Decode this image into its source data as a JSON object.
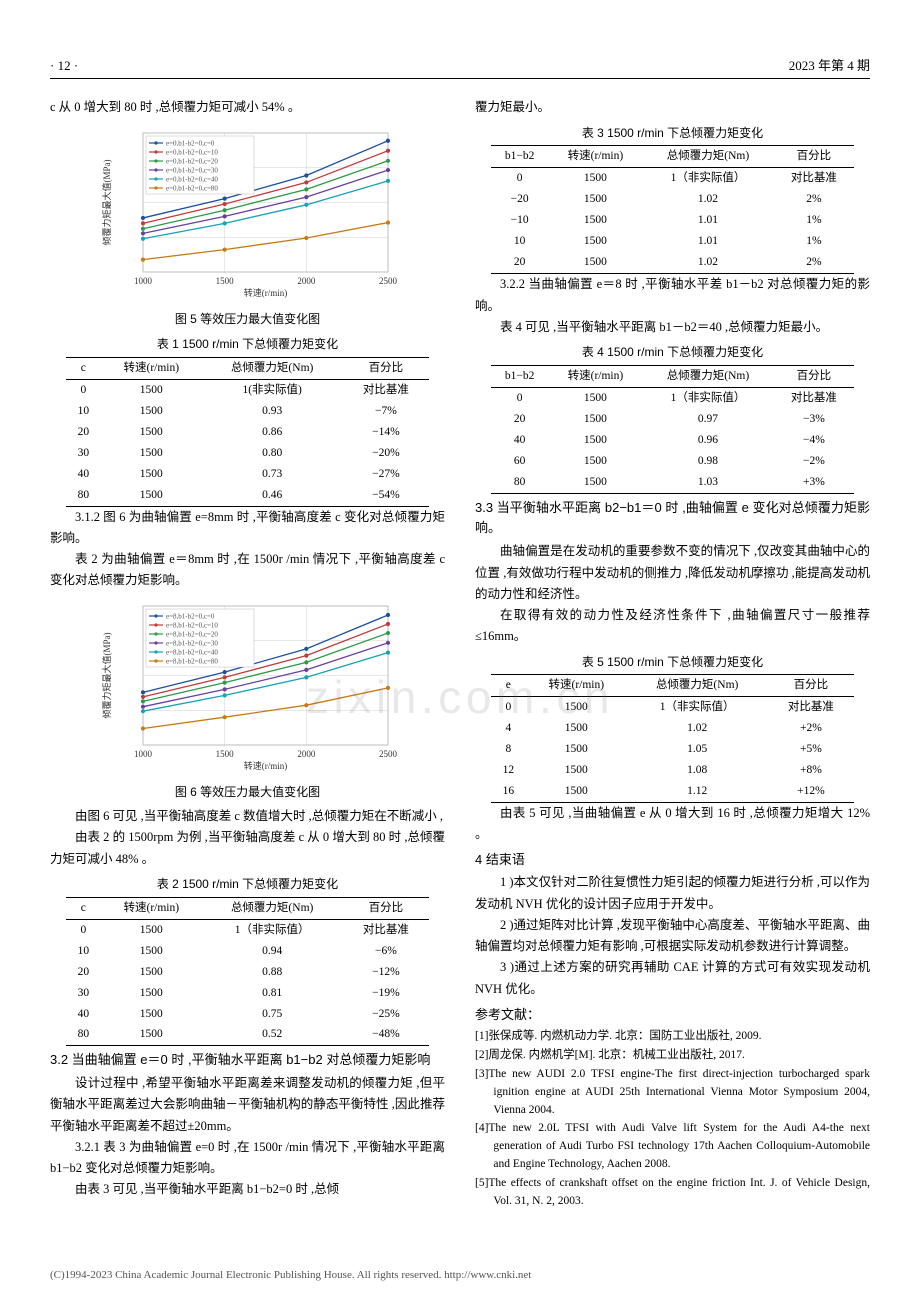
{
  "header": {
    "page_no": "· 12 ·",
    "issue": "2023 年第 4 期"
  },
  "watermark_text": "zixin.com.cn",
  "footer": "(C)1994-2023 China Academic Journal Electronic Publishing House. All rights reserved.    http://www.cnki.net",
  "left": {
    "p_lead": "c 从 0 增大到 80 时 ,总倾覆力矩可减小 54% 。",
    "fig5": {
      "caption": "图 5   等效压力最大值变化图",
      "ylabel": "倾覆力矩最大值(MPa)",
      "xlabel": "转速(r/min)",
      "xticks": [
        "1000",
        "1500",
        "2000",
        "2500"
      ],
      "yticks": [
        "",
        "",
        "",
        "",
        ""
      ],
      "legend": [
        "e=0,b1-b2=0,c=0",
        "e=0,b1-b2=0,c=10",
        "e=0,b1-b2=0,c=20",
        "e=0,b1-b2=0,c=30",
        "e=0,b1-b2=0,c=40",
        "e=0,b1-b2=0,c=80"
      ],
      "colors": [
        "#1b4fa0",
        "#c23a3a",
        "#2c9b46",
        "#6a3fa0",
        "#14a3b8",
        "#c77a12"
      ],
      "series": [
        [
          1.0,
          1.25,
          1.55,
          2.0
        ],
        [
          0.93,
          1.18,
          1.46,
          1.87
        ],
        [
          0.86,
          1.1,
          1.37,
          1.74
        ],
        [
          0.8,
          1.02,
          1.27,
          1.62
        ],
        [
          0.73,
          0.93,
          1.17,
          1.48
        ],
        [
          0.46,
          0.59,
          0.74,
          0.94
        ]
      ],
      "xlim": [
        1000,
        2500
      ],
      "ylim": [
        0.3,
        2.1
      ],
      "bg": "#ffffff",
      "grid": "#d0d0d0"
    },
    "table1": {
      "caption": "表 1   1500 r/min 下总倾覆力矩变化",
      "columns": [
        "c",
        "转速(r/min)",
        "总倾覆力矩(Nm)",
        "百分比"
      ],
      "rows": [
        [
          "0",
          "1500",
          "1(非实际值)",
          "对比基准"
        ],
        [
          "10",
          "1500",
          "0.93",
          "−7%"
        ],
        [
          "20",
          "1500",
          "0.86",
          "−14%"
        ],
        [
          "30",
          "1500",
          "0.80",
          "−20%"
        ],
        [
          "40",
          "1500",
          "0.73",
          "−27%"
        ],
        [
          "80",
          "1500",
          "0.46",
          "−54%"
        ]
      ]
    },
    "p312_a": "3.1.2 图 6 为曲轴偏置 e=8mm 时 ,平衡轴高度差 c 变化对总倾覆力矩影响。",
    "p312_b": "表 2 为曲轴偏置 e＝8mm 时 ,在 1500r /min 情况下 ,平衡轴高度差 c 变化对总倾覆力矩影响。",
    "fig6": {
      "caption": "图 6   等效压力最大值变化图",
      "ylabel": "倾覆力矩最大值(MPa)",
      "xlabel": "转速(r/min)",
      "xticks": [
        "1000",
        "1500",
        "2000",
        "2500"
      ],
      "legend": [
        "e=8,b1-b2=0,c=0",
        "e=8,b1-b2=0,c=10",
        "e=8,b1-b2=0,c=20",
        "e=8,b1-b2=0,c=30",
        "e=8,b1-b2=0,c=40",
        "e=8,b1-b2=0,c=80"
      ],
      "colors": [
        "#1b4fa0",
        "#c23a3a",
        "#2c9b46",
        "#6a3fa0",
        "#14a3b8",
        "#c77a12"
      ],
      "series": [
        [
          1.0,
          1.27,
          1.58,
          2.03
        ],
        [
          0.94,
          1.2,
          1.49,
          1.91
        ],
        [
          0.88,
          1.13,
          1.4,
          1.79
        ],
        [
          0.81,
          1.04,
          1.3,
          1.66
        ],
        [
          0.75,
          0.96,
          1.2,
          1.53
        ],
        [
          0.52,
          0.67,
          0.83,
          1.06
        ]
      ],
      "xlim": [
        1000,
        2500
      ],
      "ylim": [
        0.3,
        2.15
      ],
      "bg": "#ffffff",
      "grid": "#d0d0d0"
    },
    "p_after6_a": "由图 6 可见 ,当平衡轴高度差 c 数值增大时 ,总倾覆力矩在不断减小 ,",
    "p_after6_b": "由表 2 的 1500rpm 为例 ,当平衡轴高度差 c 从 0 增大到 80 时 ,总倾覆力矩可减小 48% 。",
    "table2": {
      "caption": "表 2   1500 r/min 下总倾覆力矩变化",
      "columns": [
        "c",
        "转速(r/min)",
        "总倾覆力矩(Nm)",
        "百分比"
      ],
      "rows": [
        [
          "0",
          "1500",
          "1（非实际值）",
          "对比基准"
        ],
        [
          "10",
          "1500",
          "0.94",
          "−6%"
        ],
        [
          "20",
          "1500",
          "0.88",
          "−12%"
        ],
        [
          "30",
          "1500",
          "0.81",
          "−19%"
        ],
        [
          "40",
          "1500",
          "0.75",
          "−25%"
        ],
        [
          "80",
          "1500",
          "0.52",
          "−48%"
        ]
      ]
    },
    "h32": "3.2  当曲轴偏置 e＝0 时 ,平衡轴水平距离 b1−b2 对总倾覆力矩影响",
    "p32_a": "设计过程中 ,希望平衡轴水平距离差来调整发动机的倾覆力矩 ,但平衡轴水平距离差过大会影响曲轴－平衡轴机构的静态平衡特性 ,因此推荐平衡轴水平距离差不超过±20mm。",
    "p321": "3.2.1 表 3 为曲轴偏置 e=0 时 ,在 1500r /min 情况下 ,平衡轴水平距离 b1−b2 变化对总倾覆力矩影响。",
    "p32_b": "由表 3 可见 ,当平衡轴水平距离 b1−b2=0 时 ,总倾"
  },
  "right": {
    "p_cont": "覆力矩最小。",
    "table3": {
      "caption": "表 3   1500 r/min 下总倾覆力矩变化",
      "columns": [
        "b1−b2",
        "转速(r/min)",
        "总倾覆力矩(Nm)",
        "百分比"
      ],
      "rows": [
        [
          "0",
          "1500",
          "1（非实际值）",
          "对比基准"
        ],
        [
          "−20",
          "1500",
          "1.02",
          "2%"
        ],
        [
          "−10",
          "1500",
          "1.01",
          "1%"
        ],
        [
          "10",
          "1500",
          "1.01",
          "1%"
        ],
        [
          "20",
          "1500",
          "1.02",
          "2%"
        ]
      ]
    },
    "p322": "3.2.2 当曲轴偏置 e＝8 时 ,平衡轴水平差 b1－b2 对总倾覆力矩的影响。",
    "p322_b": "表 4 可见 ,当平衡轴水平距离 b1－b2＝40 ,总倾覆力矩最小。",
    "table4": {
      "caption": "表 4   1500 r/min 下总倾覆力矩变化",
      "columns": [
        "b1−b2",
        "转速(r/min)",
        "总倾覆力矩(Nm)",
        "百分比"
      ],
      "rows": [
        [
          "0",
          "1500",
          "1（非实际值）",
          "对比基准"
        ],
        [
          "20",
          "1500",
          "0.97",
          "−3%"
        ],
        [
          "40",
          "1500",
          "0.96",
          "−4%"
        ],
        [
          "60",
          "1500",
          "0.98",
          "−2%"
        ],
        [
          "80",
          "1500",
          "1.03",
          "+3%"
        ]
      ]
    },
    "h33": "3.3  当平衡轴水平距离 b2−b1＝0 时 ,曲轴偏置 e 变化对总倾覆力矩影响。",
    "p33_a": "曲轴偏置是在发动机的重要参数不变的情况下 ,仅改变其曲轴中心的位置 ,有效做功行程中发动机的侧推力 ,降低发动机摩擦功 ,能提高发动机的动力性和经济性。",
    "p33_b": "在取得有效的动力性及经济性条件下 ,曲轴偏置尺寸一般推荐≤16mm。",
    "table5": {
      "caption": "表 5   1500 r/min 下总倾覆力矩变化",
      "columns": [
        "e",
        "转速(r/min)",
        "总倾覆力矩(Nm)",
        "百分比"
      ],
      "rows": [
        [
          "0",
          "1500",
          "1（非实际值）",
          "对比基准"
        ],
        [
          "4",
          "1500",
          "1.02",
          "+2%"
        ],
        [
          "8",
          "1500",
          "1.05",
          "+5%"
        ],
        [
          "12",
          "1500",
          "1.08",
          "+8%"
        ],
        [
          "16",
          "1500",
          "1.12",
          "+12%"
        ]
      ]
    },
    "p_t5": "由表 5 可见 ,当曲轴偏置 e 从 0 增大到 16 时 ,总倾覆力矩增大 12% 。",
    "h4": "4   结束语",
    "c1": "1 )本文仅针对二阶往复惯性力矩引起的倾覆力矩进行分析 ,可以作为发动机 NVH 优化的设计因子应用于开发中。",
    "c2": "2 )通过矩阵对比计算 ,发现平衡轴中心高度差、平衡轴水平距离、曲轴偏置均对总倾覆力矩有影响 ,可根据实际发动机参数进行计算调整。",
    "c3": "3 )通过上述方案的研究再辅助 CAE 计算的方式可有效实现发动机 NVH 优化。",
    "ref_title": "参考文献：",
    "refs": [
      "[1]张保成等. 内燃机动力学. 北京：国防工业出版社, 2009.",
      "[2]周龙保. 内燃机学[M]. 北京：机械工业出版社, 2017.",
      "[3]The new AUDI 2.0 TFSI engine-The first direct-injection turbocharged spark ignition engine at AUDI 25th International Vienna Motor Symposium 2004, Vienna 2004.",
      "[4]The new 2.0L TFSI with Audi Valve lift System for the Audi A4-the next generation of Audi Turbo FSI technology 17th Aachen Colloquium-Automobile and Engine Technology, Aachen 2008.",
      "[5]The effects of crankshaft offset on the engine friction Int. J. of Vehicle Design, Vol. 31, N. 2, 2003."
    ]
  }
}
